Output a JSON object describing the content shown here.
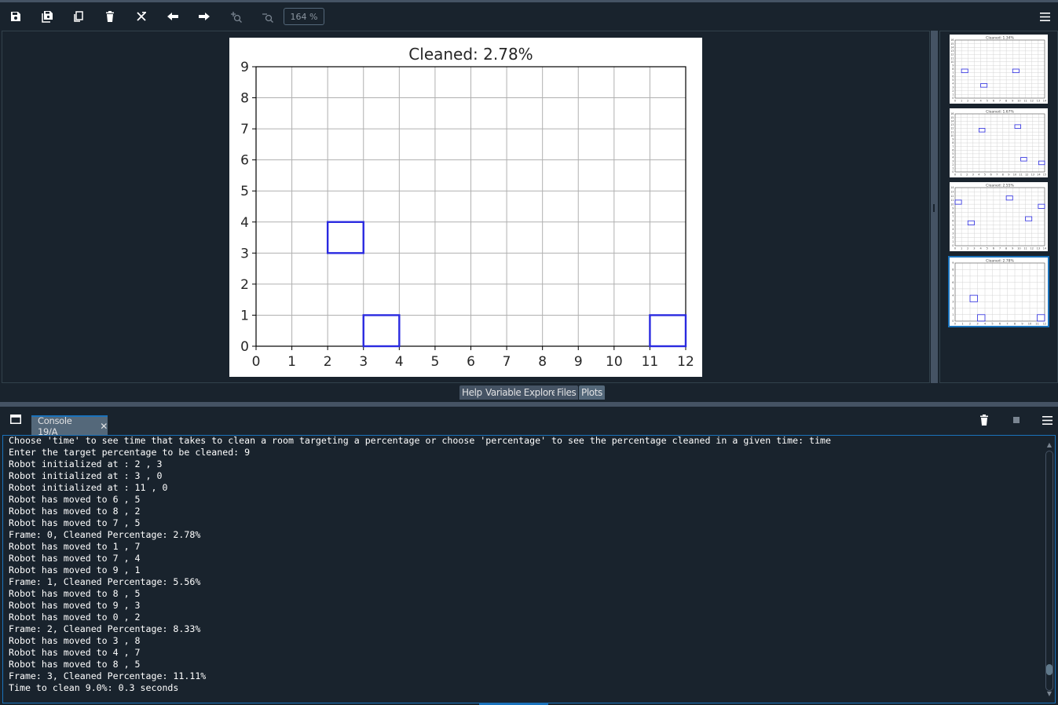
{
  "toolbar": {
    "buttons": [
      {
        "name": "save-icon",
        "title": "Save plot as..."
      },
      {
        "name": "save-all-icon",
        "title": "Save all plots"
      },
      {
        "name": "copy-icon",
        "title": "Copy plot to clipboard"
      },
      {
        "name": "delete-icon",
        "title": "Remove plot"
      },
      {
        "name": "delete-all-icon",
        "title": "Remove all plots"
      },
      {
        "name": "arrow-left-icon",
        "title": "Previous plot"
      },
      {
        "name": "arrow-right-icon",
        "title": "Next plot"
      },
      {
        "name": "zoom-in-icon",
        "title": "Zoom in"
      },
      {
        "name": "zoom-out-icon",
        "title": "Zoom out"
      }
    ],
    "zoom_value": "164 %",
    "menu_icon": "hamburger-menu-icon"
  },
  "chart_data": {
    "type": "scatter",
    "title": "Cleaned: 2.78%",
    "xlim": [
      0,
      12
    ],
    "ylim": [
      0,
      9
    ],
    "xticks": [
      "0",
      "1",
      "2",
      "3",
      "4",
      "5",
      "6",
      "7",
      "8",
      "9",
      "10",
      "11",
      "12"
    ],
    "yticks": [
      "0",
      "1",
      "2",
      "3",
      "4",
      "5",
      "6",
      "7",
      "8",
      "9"
    ],
    "grid": true,
    "robot_color": "#2a2ae0",
    "robots": [
      {
        "x": 2,
        "y": 3
      },
      {
        "x": 3,
        "y": 0
      },
      {
        "x": 11,
        "y": 0
      }
    ]
  },
  "thumbnails": [
    {
      "title": "Cleaned: 1.34%",
      "xmax": 14,
      "ymax": 16,
      "robots": [
        [
          1,
          7
        ],
        [
          9,
          7
        ],
        [
          4,
          3
        ]
      ],
      "selected": false
    },
    {
      "title": "Cleaned: 1.67%",
      "xmax": 15,
      "ymax": 16,
      "robots": [
        [
          4,
          11
        ],
        [
          10,
          12
        ],
        [
          11,
          3
        ],
        [
          14,
          2
        ]
      ],
      "selected": false
    },
    {
      "title": "Cleaned: 2.55%",
      "xmax": 14,
      "ymax": 14,
      "robots": [
        [
          0,
          10
        ],
        [
          2,
          5
        ],
        [
          8,
          11
        ],
        [
          11,
          6
        ],
        [
          13,
          9
        ]
      ],
      "selected": false
    },
    {
      "title": "Cleaned: 2.78%",
      "xmax": 12,
      "ymax": 9,
      "robots": [
        [
          2,
          3
        ],
        [
          3,
          0
        ],
        [
          11,
          0
        ]
      ],
      "selected": true
    }
  ],
  "pane_tabs": [
    {
      "label": "Help",
      "active": false
    },
    {
      "label": "Variable Explorer",
      "active": false
    },
    {
      "label": "Files",
      "active": false
    },
    {
      "label": "Plots",
      "active": true
    }
  ],
  "console": {
    "tab_label": "Console 19/A",
    "lines": [
      "Choose 'time' to see time that takes to clean a room targeting a percentage or choose 'percentage' to see the percentage cleaned in a given time: time",
      "Enter the target percentage to be cleaned: 9",
      "Robot initialized at : 2 , 3",
      "Robot initialized at : 3 , 0",
      "Robot initialized at : 11 , 0",
      "Robot has moved to 6 , 5",
      "Robot has moved to 8 , 2",
      "Robot has moved to 7 , 5",
      "Frame: 0, Cleaned Percentage: 2.78%",
      "Robot has moved to 1 , 7",
      "Robot has moved to 7 , 4",
      "Robot has moved to 9 , 1",
      "Frame: 1, Cleaned Percentage: 5.56%",
      "Robot has moved to 8 , 5",
      "Robot has moved to 9 , 3",
      "Robot has moved to 0 , 2",
      "Frame: 2, Cleaned Percentage: 8.33%",
      "Robot has moved to 3 , 8",
      "Robot has moved to 4 , 7",
      "Robot has moved to 8 , 5",
      "Frame: 3, Cleaned Percentage: 11.11%",
      "Time to clean 9.0%: 0.3 seconds"
    ]
  }
}
